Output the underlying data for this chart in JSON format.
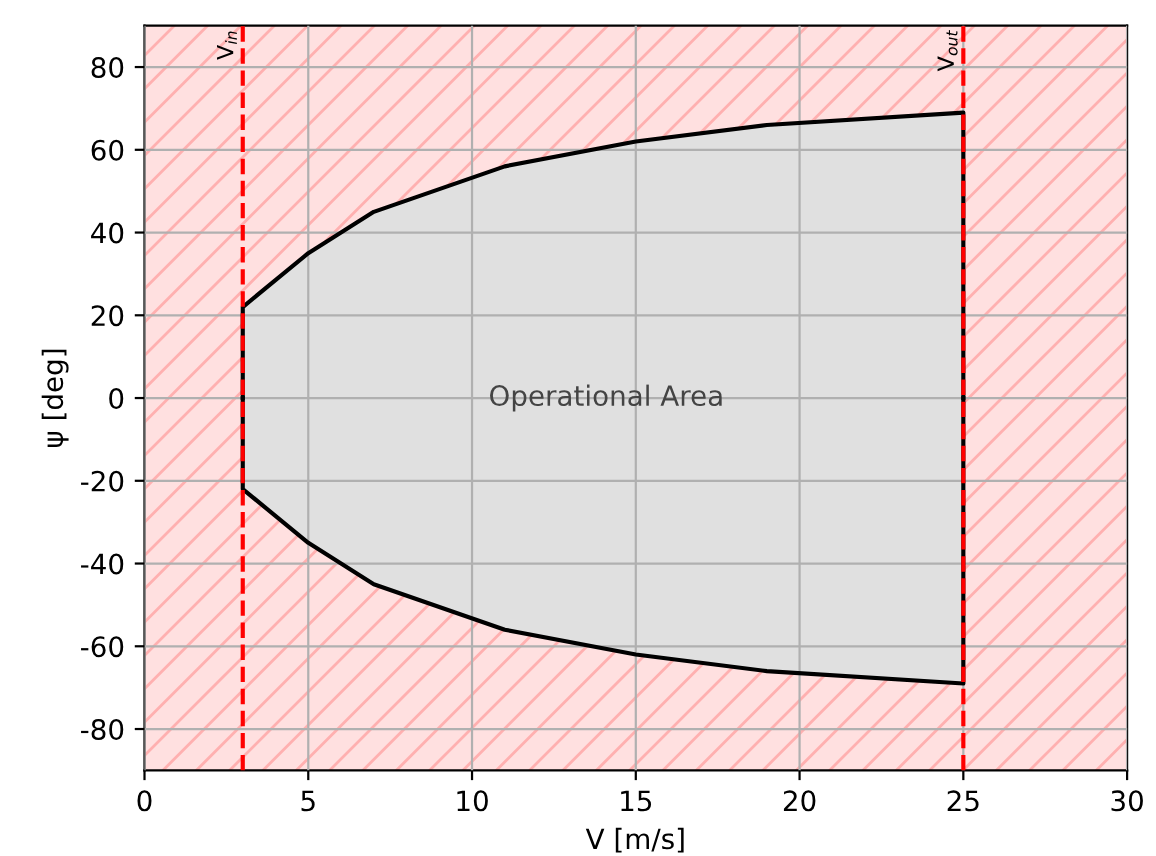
{
  "chart_data": {
    "type": "area",
    "xlabel": "V [m/s]",
    "ylabel": "ψ [deg]",
    "xlim": [
      0,
      30
    ],
    "xticks": [
      0,
      5,
      10,
      15,
      20,
      25,
      30
    ],
    "ylim": [
      -90,
      90
    ],
    "yticks": [
      -80,
      -60,
      -40,
      -20,
      0,
      20,
      40,
      60,
      80
    ],
    "grid": true,
    "series": [
      {
        "color": "#e0e0e0",
        "x": [
          3,
          5,
          7,
          11,
          15,
          19,
          25
        ],
        "values": [
          22,
          35,
          45,
          56,
          62,
          66,
          69
        ]
      },
      {
        "color": "#e0e0e0",
        "x": [
          3,
          5,
          7,
          11,
          15,
          19,
          25
        ],
        "values": [
          -22,
          -35,
          -45,
          -56,
          -62,
          -66,
          -69
        ]
      }
    ],
    "bands": [
      {
        "axis": "x",
        "from": 0,
        "to": 30,
        "color": "#ffe0e0"
      }
    ],
    "ref_lines": [
      {
        "axis": "x",
        "value": 3,
        "label": "V$_{in}$",
        "color": "#ff0000",
        "line_style": "dashed"
      },
      {
        "axis": "x",
        "value": 25,
        "label": "V$_{out}$",
        "color": "#ff0000",
        "line_style": "dashed"
      }
    ],
    "annotations": [
      "Operational Area"
    ]
  }
}
